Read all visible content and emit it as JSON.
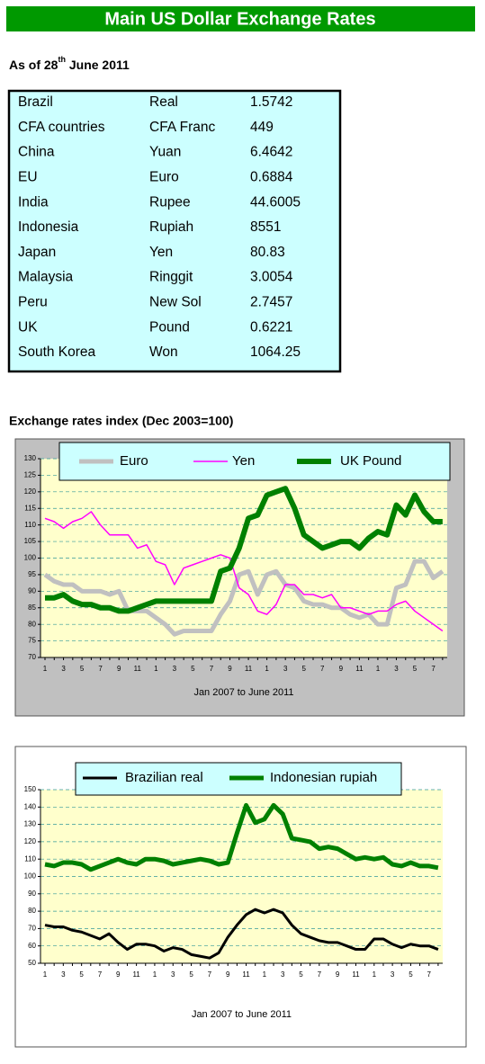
{
  "header": {
    "title": "Main US Dollar Exchange Rates",
    "subtitle": {
      "before": "As of 28",
      "sup": "th",
      "after": " June 2011"
    }
  },
  "table": {
    "rows": [
      [
        "Brazil",
        "Real",
        "1.5742"
      ],
      [
        "CFA countries",
        "CFA Franc",
        "449"
      ],
      [
        "China",
        "Yuan",
        "6.4642"
      ],
      [
        "EU",
        "Euro",
        "0.6884"
      ],
      [
        "India",
        "Rupee",
        "44.6005"
      ],
      [
        "Indonesia",
        "Rupiah",
        "8551"
      ],
      [
        "Japan",
        "Yen",
        "80.83"
      ],
      [
        "Malaysia",
        "Ringgit",
        "3.0054"
      ],
      [
        "Peru",
        "New Sol",
        "2.7457"
      ],
      [
        "UK",
        "Pound",
        "0.6221"
      ],
      [
        "South Korea",
        "Won",
        "1064.25"
      ]
    ]
  },
  "section_title": "Exchange rates index (Dec 2003=100)",
  "chart_data": [
    {
      "type": "line",
      "xlabel": "Jan 2007 to June 2011",
      "categories": [
        "1",
        null,
        "3",
        null,
        "5",
        null,
        "7",
        null,
        "9",
        null,
        "11",
        null,
        "1",
        null,
        "3",
        null,
        "5",
        null,
        "7",
        null,
        "9",
        null,
        "11",
        null,
        "1",
        null,
        "3",
        null,
        "5",
        null,
        "7",
        null,
        "9",
        null,
        "11",
        null,
        "1",
        null,
        "3",
        null,
        "5",
        null,
        "7",
        null
      ],
      "series": [
        {
          "name": "Euro",
          "color": "#c0c0c0",
          "values": [
            95,
            93,
            92,
            92,
            90,
            90,
            90,
            89,
            90,
            84,
            84,
            84,
            82,
            80,
            77,
            78,
            78,
            78,
            78,
            83,
            87,
            95,
            96,
            89,
            95,
            96,
            92,
            91,
            87,
            86,
            86,
            85,
            85,
            83,
            82,
            83,
            80,
            80,
            91,
            92,
            99,
            99,
            94,
            96
          ]
        },
        {
          "name": "Yen",
          "color": "#ff00ff",
          "values": [
            112,
            111,
            109,
            111,
            112,
            114,
            110,
            107,
            107,
            107,
            103,
            104,
            99,
            98,
            92,
            97,
            98,
            99,
            100,
            101,
            100,
            91,
            89,
            84,
            83,
            86,
            92,
            92,
            89,
            89,
            88,
            89,
            85,
            85,
            84,
            83,
            84,
            84,
            86,
            87,
            84,
            82,
            80,
            78
          ]
        },
        {
          "name": "UK Pound",
          "color": "#008000",
          "values": [
            88,
            88,
            89,
            87,
            86,
            86,
            85,
            85,
            84,
            84,
            85,
            86,
            87,
            87,
            87,
            87,
            87,
            87,
            87,
            96,
            97,
            103,
            112,
            113,
            119,
            120,
            121,
            115,
            107,
            105,
            103,
            104,
            105,
            105,
            103,
            106,
            108,
            107,
            116,
            113,
            119,
            114,
            111,
            111
          ]
        }
      ],
      "ylim": [
        70,
        130
      ],
      "yticks": [
        70,
        75,
        80,
        85,
        90,
        95,
        100,
        105,
        110,
        115,
        120,
        125,
        130
      ],
      "grid": true
    },
    {
      "type": "line",
      "xlabel": "Jan 2007 to June 2011",
      "categories": [
        "1",
        null,
        "3",
        null,
        "5",
        null,
        "7",
        null,
        "9",
        null,
        "11",
        null,
        "1",
        null,
        "3",
        null,
        "5",
        null,
        "7",
        null,
        "9",
        null,
        "11",
        null,
        "1",
        null,
        "3",
        null,
        "5",
        null,
        "7",
        null,
        "9",
        null,
        "11",
        null,
        "1",
        null,
        "3",
        null,
        "5",
        null,
        "7",
        null
      ],
      "series": [
        {
          "name": "Brazilian real",
          "color": "#000000",
          "values": [
            72,
            71,
            71,
            69,
            68,
            66,
            64,
            67,
            62,
            58,
            61,
            61,
            60,
            57,
            59,
            58,
            55,
            54,
            53,
            56,
            65,
            72,
            78,
            81,
            79,
            81,
            79,
            72,
            67,
            65,
            63,
            62,
            62,
            60,
            58,
            58,
            64,
            64,
            61,
            59,
            61,
            60,
            60,
            58
          ]
        },
        {
          "name": "Indonesian rupiah",
          "color": "#008000",
          "values": [
            107,
            106,
            108,
            108,
            107,
            104,
            106,
            108,
            110,
            108,
            107,
            110,
            110,
            109,
            107,
            108,
            109,
            110,
            109,
            107,
            108,
            125,
            141,
            131,
            133,
            141,
            136,
            122,
            121,
            120,
            116,
            117,
            116,
            113,
            110,
            111,
            110,
            111,
            107,
            106,
            108,
            106,
            106,
            105
          ]
        }
      ],
      "ylim": [
        50,
        150
      ],
      "yticks": [
        50,
        60,
        70,
        80,
        90,
        100,
        110,
        120,
        130,
        140,
        150
      ],
      "grid": true
    }
  ]
}
